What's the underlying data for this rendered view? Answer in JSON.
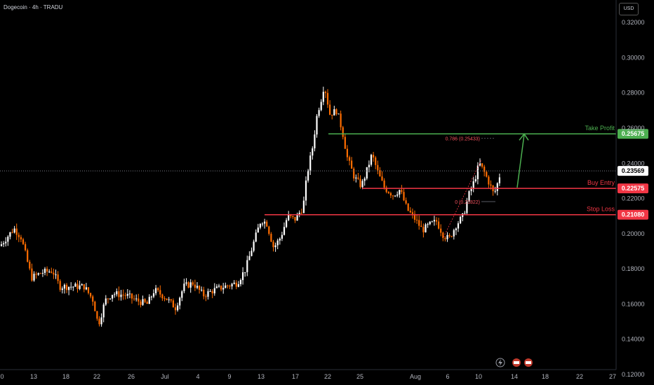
{
  "header": {
    "symbol": "Dogecoin · 4h · TRADU",
    "currency": "USD"
  },
  "chart_data": {
    "type": "candlestick",
    "title": "Dogecoin · 4h · TRADU",
    "ylim": [
      0.12,
      0.33
    ],
    "y_ticks": [
      "0.32000",
      "0.30000",
      "0.28000",
      "0.26000",
      "0.24000",
      "0.22000",
      "0.20000",
      "0.18000",
      "0.16000",
      "0.14000",
      "0.12000"
    ],
    "x_ticks": [
      "0",
      "13",
      "18",
      "22",
      "26",
      "Jul",
      "4",
      "9",
      "13",
      "17",
      "22",
      "25",
      "Aug",
      "6",
      "10",
      "14",
      "18",
      "22",
      "27"
    ],
    "price_path": [
      [
        0,
        0.193
      ],
      [
        20,
        0.203
      ],
      [
        30,
        0.198
      ],
      [
        45,
        0.175
      ],
      [
        60,
        0.178
      ],
      [
        75,
        0.179
      ],
      [
        85,
        0.17
      ],
      [
        100,
        0.17
      ],
      [
        120,
        0.17
      ],
      [
        133,
        0.162
      ],
      [
        140,
        0.148
      ],
      [
        150,
        0.162
      ],
      [
        160,
        0.166
      ],
      [
        180,
        0.165
      ],
      [
        195,
        0.162
      ],
      [
        210,
        0.16
      ],
      [
        220,
        0.168
      ],
      [
        235,
        0.164
      ],
      [
        250,
        0.158
      ],
      [
        262,
        0.17
      ],
      [
        275,
        0.172
      ],
      [
        290,
        0.165
      ],
      [
        305,
        0.168
      ],
      [
        320,
        0.17
      ],
      [
        338,
        0.172
      ],
      [
        350,
        0.18
      ],
      [
        360,
        0.193
      ],
      [
        372,
        0.208
      ],
      [
        380,
        0.206
      ],
      [
        390,
        0.192
      ],
      [
        400,
        0.198
      ],
      [
        410,
        0.21
      ],
      [
        420,
        0.208
      ],
      [
        432,
        0.215
      ],
      [
        438,
        0.235
      ],
      [
        445,
        0.248
      ],
      [
        452,
        0.268
      ],
      [
        458,
        0.277
      ],
      [
        462,
        0.285
      ],
      [
        470,
        0.268
      ],
      [
        480,
        0.27
      ],
      [
        488,
        0.258
      ],
      [
        495,
        0.243
      ],
      [
        505,
        0.232
      ],
      [
        515,
        0.227
      ],
      [
        522,
        0.235
      ],
      [
        530,
        0.245
      ],
      [
        540,
        0.233
      ],
      [
        548,
        0.226
      ],
      [
        560,
        0.222
      ],
      [
        570,
        0.225
      ],
      [
        580,
        0.214
      ],
      [
        592,
        0.208
      ],
      [
        602,
        0.202
      ],
      [
        612,
        0.205
      ],
      [
        622,
        0.207
      ],
      [
        632,
        0.199
      ],
      [
        640,
        0.197
      ],
      [
        650,
        0.205
      ],
      [
        660,
        0.21
      ],
      [
        668,
        0.222
      ],
      [
        676,
        0.23
      ],
      [
        683,
        0.24
      ],
      [
        690,
        0.235
      ],
      [
        698,
        0.228
      ],
      [
        704,
        0.222
      ],
      [
        710,
        0.23
      ],
      [
        714,
        0.236
      ]
    ],
    "current_price": "0.23569",
    "levels": [
      {
        "name": "Take Profit",
        "value": 0.25675,
        "label": "0.25675",
        "color": "#4caf50"
      },
      {
        "name": "Buy Entry",
        "value": 0.22575,
        "label": "0.22575",
        "color": "#f23645"
      },
      {
        "name": "Stop Loss",
        "value": 0.2108,
        "label": "0.21080",
        "color": "#f23645"
      }
    ],
    "fib": {
      "level_786": "0.786 (0.25433)",
      "level_0": "0 (0.21822)"
    },
    "projection": {
      "from": 0.2262,
      "to": 0.2567,
      "color": "#4caf50"
    }
  }
}
